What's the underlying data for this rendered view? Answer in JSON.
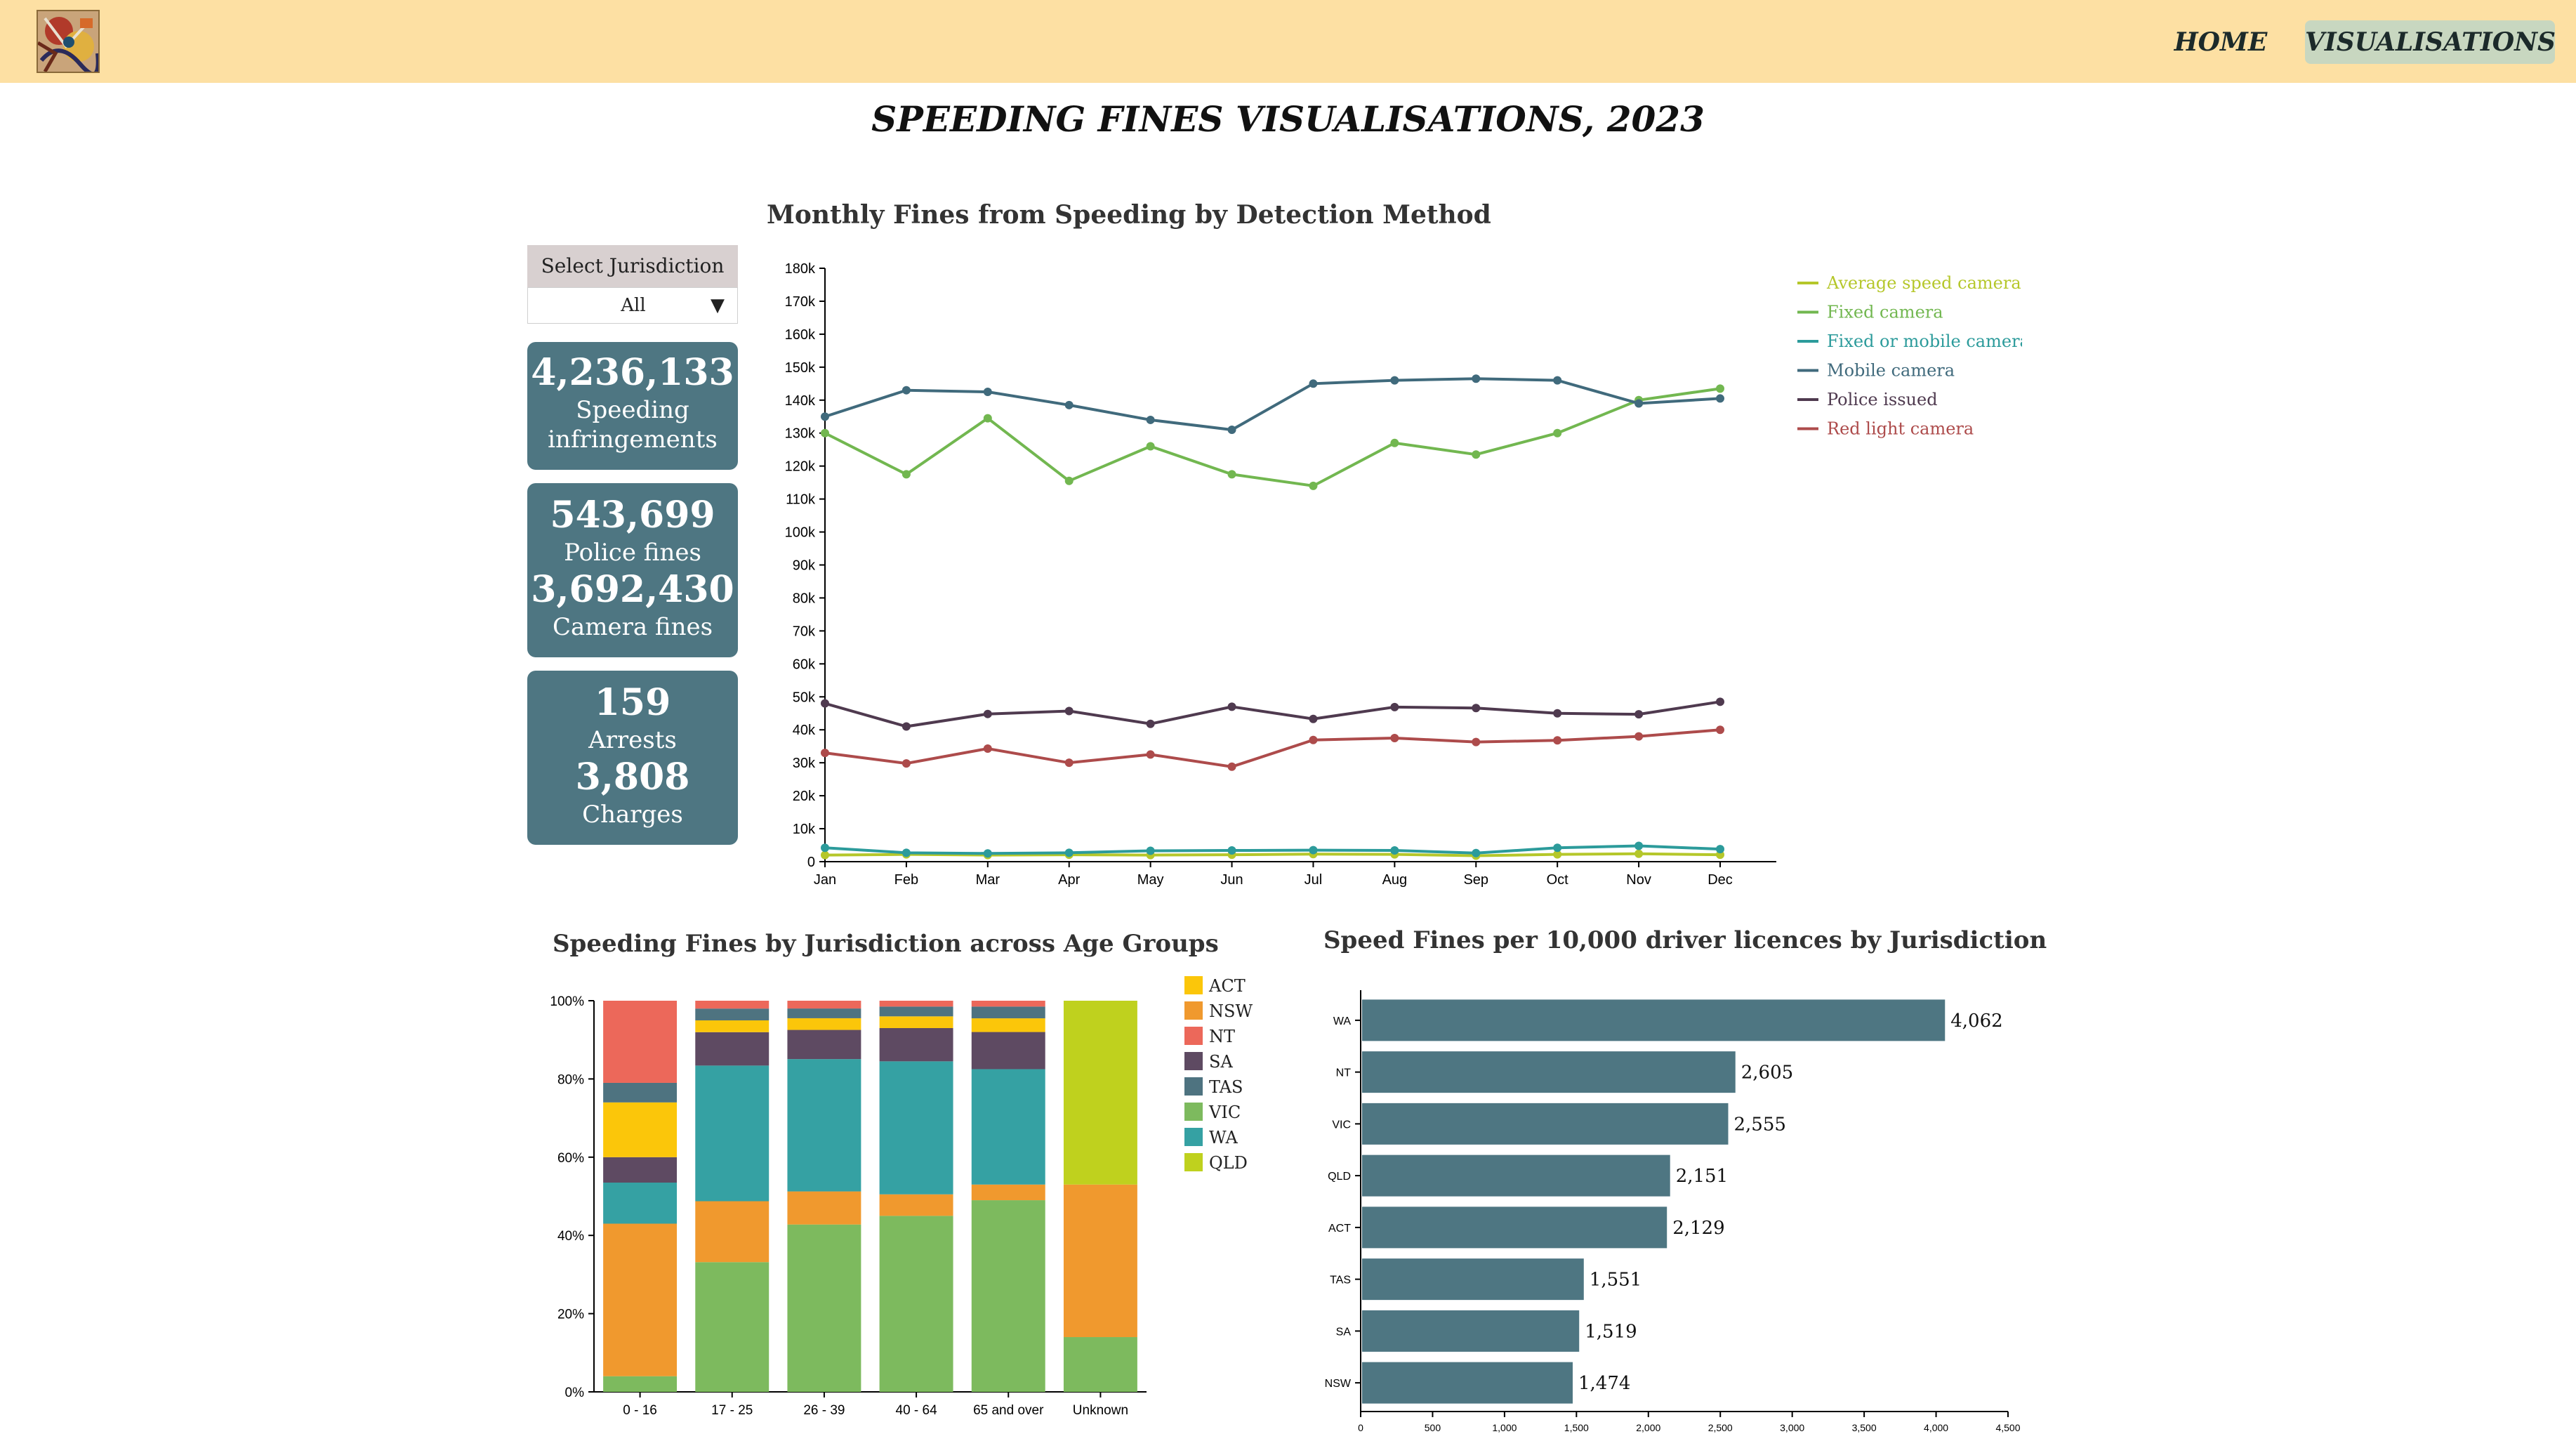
{
  "nav": {
    "logo_icon": "abstract-art-logo",
    "home_label": "HOME",
    "visualisations_label": "VISUALISATIONS"
  },
  "page_title": "SPEEDING FINES VISUALISATIONS, 2023",
  "filter": {
    "label": "Select Jurisdiction",
    "selected": "All",
    "icon": "dropdown-triangle-icon"
  },
  "stats": {
    "total_value": "4,236,133",
    "total_label_1": "Speeding",
    "total_label_2": "infringements",
    "police_value": "543,699",
    "police_label": "Police fines",
    "camera_value": "3,692,430",
    "camera_label": "Camera fines",
    "arrests_value": "159",
    "arrests_label": "Arrests",
    "charges_value": "3,808",
    "charges_label": "Charges"
  },
  "titles": {
    "line_chart": "Monthly Fines from Speeding by Detection Method",
    "stacked_chart": "Speeding Fines by Jurisdiction across Age Groups",
    "bar_chart": "Speed Fines per 10,000 driver licences by Jurisdiction"
  },
  "colors": {
    "accent_card": "#4e7682",
    "navbar": "#fde0a3",
    "nav_active": "#c8d7c0"
  },
  "chart_data": [
    {
      "type": "line",
      "title": "Monthly Fines from Speeding by Detection Method",
      "x": [
        "Jan",
        "Feb",
        "Mar",
        "Apr",
        "May",
        "Jun",
        "Jul",
        "Aug",
        "Sep",
        "Oct",
        "Nov",
        "Dec"
      ],
      "ylim": [
        0,
        180000
      ],
      "y_ticks": [
        "0",
        "10k",
        "20k",
        "30k",
        "40k",
        "50k",
        "60k",
        "70k",
        "80k",
        "90k",
        "100k",
        "110k",
        "120k",
        "130k",
        "140k",
        "150k",
        "160k",
        "170k",
        "180k"
      ],
      "legend_position": "top-right",
      "series": [
        {
          "name": "Average speed camera",
          "color": "#b5c72a",
          "values": [
            2000,
            2200,
            2000,
            2100,
            2000,
            2100,
            2300,
            2200,
            1800,
            2200,
            2400,
            2100
          ]
        },
        {
          "name": "Fixed camera",
          "color": "#72b750",
          "values": [
            130000,
            117500,
            134500,
            115500,
            126000,
            117500,
            114000,
            127000,
            123500,
            130000,
            140000,
            143500
          ]
        },
        {
          "name": "Fixed or mobile camera",
          "color": "#2c9b9b",
          "values": [
            4200,
            2700,
            2500,
            2700,
            3300,
            3400,
            3500,
            3400,
            2600,
            4200,
            4800,
            3800
          ]
        },
        {
          "name": "Mobile camera",
          "color": "#406a7c",
          "values": [
            135000,
            143000,
            142500,
            138500,
            134000,
            131000,
            145000,
            146000,
            146500,
            146000,
            139000,
            140500
          ]
        },
        {
          "name": "Police issued",
          "color": "#4f3a4f",
          "values": [
            48000,
            41000,
            44800,
            45700,
            41800,
            47000,
            43300,
            46900,
            46600,
            45000,
            44700,
            48500
          ]
        },
        {
          "name": "Red light camera",
          "color": "#ad4b4b",
          "values": [
            33000,
            29800,
            34300,
            30000,
            32500,
            28800,
            36900,
            37500,
            36300,
            36800,
            38000,
            40000
          ]
        }
      ]
    },
    {
      "type": "bar",
      "subtype": "stacked-percent",
      "title": "Speeding Fines by Jurisdiction across Age Groups",
      "categories": [
        "0 - 16",
        "17 - 25",
        "26 - 39",
        "40 - 64",
        "65 and over",
        "Unknown"
      ],
      "ylim": [
        0,
        100
      ],
      "y_ticks": [
        "0%",
        "20%",
        "40%",
        "60%",
        "80%",
        "100%"
      ],
      "legend_position": "right",
      "series": [
        {
          "name": "VIC",
          "color": "#7dba5e",
          "values": [
            4,
            33,
            43,
            45,
            49,
            14
          ]
        },
        {
          "name": "NSW",
          "color": "#f0992e",
          "values": [
            39,
            15.5,
            8.5,
            5.5,
            4,
            39
          ]
        },
        {
          "name": "QLD",
          "color": "#bfd11e",
          "values": [
            0,
            0,
            0,
            0,
            0,
            47
          ]
        },
        {
          "name": "WA",
          "color": "#35a1a3",
          "values": [
            10.5,
            34.5,
            34,
            34,
            29.5,
            0
          ]
        },
        {
          "name": "SA",
          "color": "#5e4a62",
          "values": [
            6.5,
            8.5,
            7.5,
            8.5,
            9.5,
            0
          ]
        },
        {
          "name": "ACT",
          "color": "#fbc60a",
          "values": [
            14,
            3,
            3,
            3,
            3.5,
            0
          ]
        },
        {
          "name": "TAS",
          "color": "#4e7380",
          "values": [
            5,
            3,
            2.5,
            2.5,
            3,
            0
          ]
        },
        {
          "name": "NT",
          "color": "#ec685a",
          "values": [
            21,
            2,
            2,
            1.5,
            1.5,
            0
          ]
        }
      ],
      "legend_order": [
        "ACT",
        "NSW",
        "NT",
        "SA",
        "TAS",
        "VIC",
        "WA",
        "QLD"
      ]
    },
    {
      "type": "bar",
      "orientation": "horizontal",
      "title": "Speed Fines per 10,000 driver licences by Jurisdiction",
      "categories": [
        "WA",
        "NT",
        "VIC",
        "QLD",
        "ACT",
        "TAS",
        "SA",
        "NSW"
      ],
      "values": [
        4062,
        2605,
        2555,
        2151,
        2129,
        1551,
        1519,
        1474
      ],
      "value_labels": [
        "4,062",
        "2,605",
        "2,555",
        "2,151",
        "2,129",
        "1,551",
        "1,519",
        "1,474"
      ],
      "xlim": [
        0,
        4500
      ],
      "x_ticks": [
        "0",
        "500",
        "1,000",
        "1,500",
        "2,000",
        "2,500",
        "3,000",
        "3,500",
        "4,000",
        "4,500"
      ],
      "color": "#4e7682"
    }
  ]
}
